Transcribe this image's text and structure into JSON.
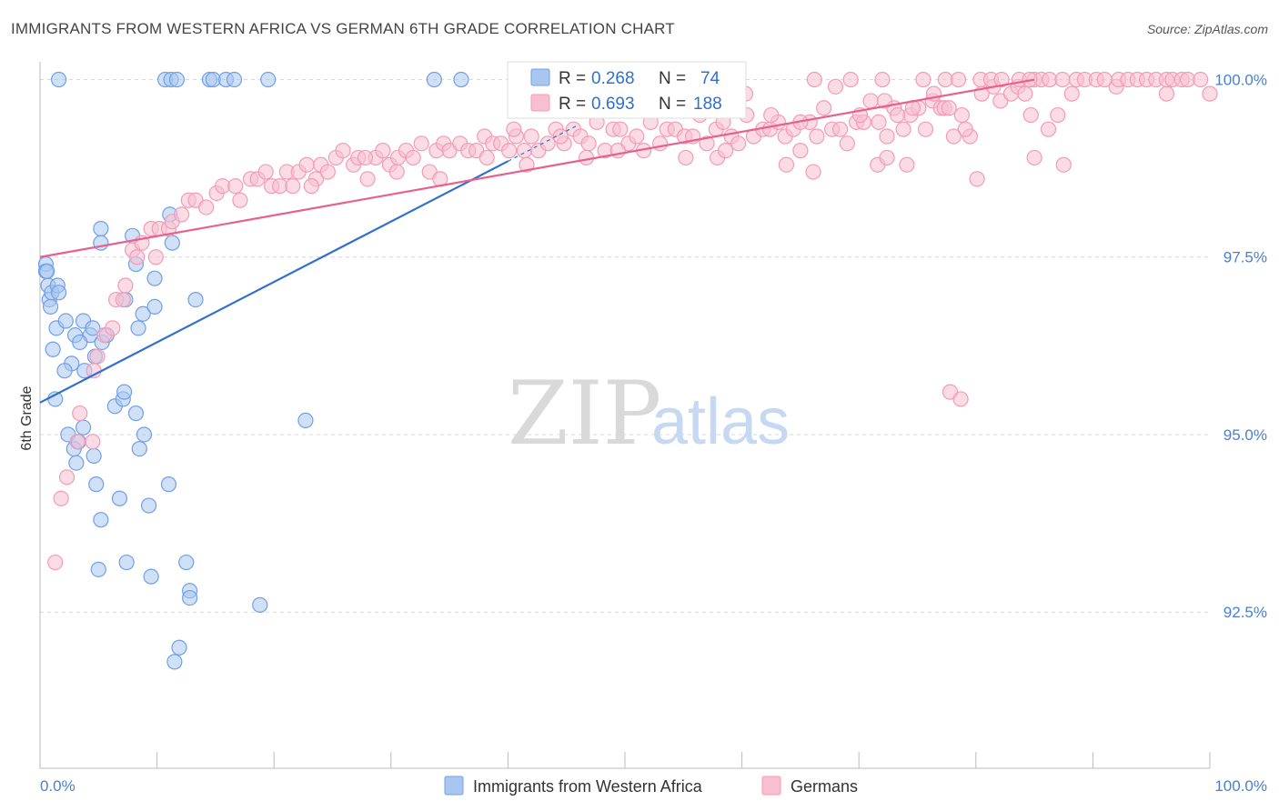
{
  "header": {
    "title": "IMMIGRANTS FROM WESTERN AFRICA VS GERMAN 6TH GRADE CORRELATION CHART",
    "source": "Source: ZipAtlas.com"
  },
  "watermark": {
    "zip": "ZIP",
    "atlas": "atlas"
  },
  "stats_box": {
    "rows": [
      {
        "r_label": "R = ",
        "r_value": "0.268",
        "n_label": "N = ",
        "n_value": "74",
        "color": "#6fa0e8"
      },
      {
        "r_label": "R = ",
        "r_value": "0.693",
        "n_label": "N = ",
        "n_value": "188",
        "color": "#f39bb7"
      }
    ]
  },
  "colors": {
    "blue_fill": "#a9c6f1",
    "blue_stroke": "#6fa0e8",
    "blue_line": "#2f6fcf",
    "pink_fill": "#f8bfd0",
    "pink_stroke": "#f39bb7",
    "pink_line": "#e7608e",
    "axis_text": "#4a7fd0",
    "grid": "#d8d8d8"
  },
  "chart_data": {
    "type": "scatter",
    "title": "IMMIGRANTS FROM WESTERN AFRICA VS GERMAN 6TH GRADE CORRELATION CHART",
    "xlabel": "",
    "ylabel": "6th Grade",
    "xlim": [
      0,
      100
    ],
    "ylim": [
      90.3,
      100.25
    ],
    "x_tick_labels": [
      "0.0%",
      "100.0%"
    ],
    "y_ticks": [
      92.5,
      95.0,
      97.5,
      100.0
    ],
    "y_tick_labels": [
      "92.5%",
      "95.0%",
      "97.5%",
      "100.0%"
    ],
    "legend": [
      "Immigrants from Western Africa",
      "Germans"
    ],
    "series": [
      {
        "name": "Immigrants from Western Africa",
        "trend": [
          [
            0.0,
            95.45
          ],
          [
            40.0,
            98.85
          ]
        ],
        "points": [
          [
            0.5,
            97.4
          ],
          [
            0.5,
            97.3
          ],
          [
            0.7,
            97.1
          ],
          [
            0.8,
            96.9
          ],
          [
            0.9,
            96.8
          ],
          [
            1.0,
            97.0
          ],
          [
            1.5,
            97.1
          ],
          [
            1.6,
            97.0
          ],
          [
            1.4,
            96.5
          ],
          [
            1.1,
            96.2
          ],
          [
            1.3,
            95.5
          ],
          [
            2.2,
            96.6
          ],
          [
            2.7,
            96.0
          ],
          [
            2.1,
            95.9
          ],
          [
            3.0,
            96.4
          ],
          [
            3.7,
            96.6
          ],
          [
            4.3,
            96.4
          ],
          [
            4.7,
            96.1
          ],
          [
            5.3,
            96.3
          ],
          [
            5.7,
            96.4
          ],
          [
            3.8,
            95.9
          ],
          [
            2.4,
            95.0
          ],
          [
            2.9,
            94.8
          ],
          [
            3.1,
            94.6
          ],
          [
            3.3,
            94.9
          ],
          [
            3.7,
            95.1
          ],
          [
            4.6,
            94.7
          ],
          [
            4.8,
            94.3
          ],
          [
            6.4,
            95.4
          ],
          [
            7.1,
            95.5
          ],
          [
            7.2,
            95.6
          ],
          [
            8.2,
            95.3
          ],
          [
            8.5,
            94.8
          ],
          [
            8.9,
            95.0
          ],
          [
            5.2,
            93.8
          ],
          [
            6.8,
            94.1
          ],
          [
            9.3,
            94.0
          ],
          [
            11.0,
            94.3
          ],
          [
            11.3,
            97.7
          ],
          [
            11.1,
            98.1
          ],
          [
            7.9,
            97.8
          ],
          [
            5.2,
            97.7
          ],
          [
            5.2,
            97.9
          ],
          [
            8.2,
            97.4
          ],
          [
            9.8,
            97.2
          ],
          [
            8.4,
            96.5
          ],
          [
            8.8,
            96.7
          ],
          [
            9.8,
            96.8
          ],
          [
            13.3,
            96.9
          ],
          [
            7.3,
            96.9
          ],
          [
            4.5,
            96.5
          ],
          [
            3.4,
            96.3
          ],
          [
            12.5,
            93.2
          ],
          [
            9.5,
            93.0
          ],
          [
            5.0,
            93.1
          ],
          [
            7.4,
            93.2
          ],
          [
            12.8,
            92.8
          ],
          [
            12.8,
            92.7
          ],
          [
            11.5,
            91.8
          ],
          [
            11.9,
            92.0
          ],
          [
            18.8,
            92.6
          ],
          [
            22.7,
            95.2
          ],
          [
            10.7,
            100.0
          ],
          [
            11.2,
            100.0
          ],
          [
            11.7,
            100.0
          ],
          [
            14.5,
            100.0
          ],
          [
            14.8,
            100.0
          ],
          [
            15.9,
            100.0
          ],
          [
            16.6,
            100.0
          ],
          [
            19.5,
            100.0
          ],
          [
            33.7,
            100.0
          ],
          [
            36.0,
            100.0
          ],
          [
            1.6,
            100.0
          ],
          [
            0.6,
            97.3
          ]
        ]
      },
      {
        "name": "Germans",
        "trend": [
          [
            0.0,
            97.5
          ],
          [
            85.0,
            100.0
          ]
        ],
        "points": [
          [
            1.3,
            93.2
          ],
          [
            1.8,
            94.1
          ],
          [
            2.3,
            94.4
          ],
          [
            3.2,
            94.9
          ],
          [
            3.4,
            95.3
          ],
          [
            4.5,
            94.9
          ],
          [
            4.6,
            95.9
          ],
          [
            4.9,
            96.1
          ],
          [
            5.5,
            96.4
          ],
          [
            6.2,
            96.5
          ],
          [
            6.5,
            96.9
          ],
          [
            7.1,
            96.9
          ],
          [
            7.3,
            97.1
          ],
          [
            7.9,
            97.6
          ],
          [
            8.3,
            97.5
          ],
          [
            8.7,
            97.7
          ],
          [
            9.5,
            97.9
          ],
          [
            9.9,
            97.5
          ],
          [
            10.2,
            97.9
          ],
          [
            11.0,
            97.9
          ],
          [
            11.3,
            98.0
          ],
          [
            12.1,
            98.1
          ],
          [
            12.7,
            98.3
          ],
          [
            13.3,
            98.3
          ],
          [
            14.2,
            98.2
          ],
          [
            15.1,
            98.4
          ],
          [
            15.6,
            98.5
          ],
          [
            16.7,
            98.5
          ],
          [
            17.1,
            98.3
          ],
          [
            18.0,
            98.6
          ],
          [
            18.6,
            98.6
          ],
          [
            19.3,
            98.7
          ],
          [
            19.8,
            98.5
          ],
          [
            20.5,
            98.5
          ],
          [
            21.1,
            98.7
          ],
          [
            21.6,
            98.5
          ],
          [
            22.1,
            98.7
          ],
          [
            22.8,
            98.8
          ],
          [
            23.6,
            98.6
          ],
          [
            24.0,
            98.8
          ],
          [
            24.6,
            98.7
          ],
          [
            25.3,
            98.9
          ],
          [
            25.9,
            99.0
          ],
          [
            26.8,
            98.8
          ],
          [
            27.2,
            98.9
          ],
          [
            28.0,
            98.6
          ],
          [
            28.7,
            98.9
          ],
          [
            29.3,
            99.0
          ],
          [
            29.9,
            98.8
          ],
          [
            30.6,
            98.9
          ],
          [
            31.3,
            99.0
          ],
          [
            31.9,
            98.9
          ],
          [
            32.6,
            99.1
          ],
          [
            33.3,
            98.7
          ],
          [
            33.9,
            99.0
          ],
          [
            34.5,
            99.1
          ],
          [
            35.0,
            99.0
          ],
          [
            35.9,
            99.1
          ],
          [
            36.6,
            99.0
          ],
          [
            37.3,
            99.0
          ],
          [
            38.0,
            99.2
          ],
          [
            38.7,
            99.1
          ],
          [
            39.4,
            99.1
          ],
          [
            40.1,
            99.0
          ],
          [
            40.7,
            99.2
          ],
          [
            41.4,
            99.0
          ],
          [
            42.0,
            99.2
          ],
          [
            42.6,
            99.0
          ],
          [
            43.4,
            99.1
          ],
          [
            44.1,
            99.3
          ],
          [
            44.8,
            99.1
          ],
          [
            45.6,
            99.3
          ],
          [
            46.2,
            99.2
          ],
          [
            46.9,
            99.1
          ],
          [
            47.6,
            99.4
          ],
          [
            48.3,
            99.0
          ],
          [
            49.0,
            99.3
          ],
          [
            49.6,
            99.3
          ],
          [
            50.3,
            99.1
          ],
          [
            51.0,
            99.2
          ],
          [
            51.6,
            99.0
          ],
          [
            52.2,
            99.4
          ],
          [
            53.0,
            99.1
          ],
          [
            53.6,
            99.3
          ],
          [
            54.3,
            99.3
          ],
          [
            55.1,
            99.2
          ],
          [
            55.8,
            99.2
          ],
          [
            56.4,
            99.5
          ],
          [
            57.0,
            99.1
          ],
          [
            57.8,
            99.3
          ],
          [
            58.4,
            99.4
          ],
          [
            59.1,
            99.2
          ],
          [
            59.7,
            99.1
          ],
          [
            60.4,
            99.5
          ],
          [
            61.0,
            99.2
          ],
          [
            61.8,
            99.3
          ],
          [
            62.4,
            99.3
          ],
          [
            63.1,
            99.4
          ],
          [
            63.7,
            99.2
          ],
          [
            64.4,
            99.3
          ],
          [
            65.0,
            99.0
          ],
          [
            65.8,
            99.4
          ],
          [
            66.4,
            99.2
          ],
          [
            67.0,
            99.6
          ],
          [
            67.7,
            99.3
          ],
          [
            68.4,
            99.3
          ],
          [
            69.0,
            99.1
          ],
          [
            69.8,
            99.4
          ],
          [
            70.4,
            99.4
          ],
          [
            71.0,
            99.7
          ],
          [
            71.7,
            99.4
          ],
          [
            72.4,
            99.2
          ],
          [
            73.0,
            99.6
          ],
          [
            73.8,
            99.3
          ],
          [
            74.4,
            99.5
          ],
          [
            75.1,
            99.6
          ],
          [
            75.7,
            99.3
          ],
          [
            76.3,
            99.7
          ],
          [
            77.0,
            99.6
          ],
          [
            78.8,
            99.5
          ],
          [
            79.5,
            99.2
          ],
          [
            80.5,
            99.8
          ],
          [
            81.5,
            99.9
          ],
          [
            82.1,
            99.7
          ],
          [
            83.0,
            99.8
          ],
          [
            83.6,
            99.9
          ],
          [
            84.2,
            99.8
          ],
          [
            85.0,
            100.0
          ],
          [
            85.6,
            100.0
          ],
          [
            23.2,
            98.5
          ],
          [
            27.8,
            98.9
          ],
          [
            30.5,
            98.7
          ],
          [
            34.2,
            98.6
          ],
          [
            38.2,
            98.9
          ],
          [
            41.6,
            98.8
          ],
          [
            46.7,
            98.9
          ],
          [
            49.4,
            99.0
          ],
          [
            55.2,
            98.9
          ],
          [
            57.9,
            98.9
          ],
          [
            58.6,
            99.0
          ],
          [
            63.8,
            98.8
          ],
          [
            66.1,
            98.7
          ],
          [
            71.6,
            98.8
          ],
          [
            72.4,
            98.9
          ],
          [
            74.1,
            98.8
          ],
          [
            79.1,
            99.3
          ],
          [
            88.2,
            99.8
          ],
          [
            92.0,
            99.9
          ],
          [
            96.3,
            99.8
          ],
          [
            100.0,
            99.8
          ],
          [
            66.2,
            100.0
          ],
          [
            69.3,
            100.0
          ],
          [
            72.0,
            100.0
          ],
          [
            75.5,
            100.0
          ],
          [
            77.4,
            100.0
          ],
          [
            78.5,
            100.0
          ],
          [
            80.4,
            100.0
          ],
          [
            81.3,
            100.0
          ],
          [
            82.2,
            100.0
          ],
          [
            83.7,
            100.0
          ],
          [
            84.6,
            100.0
          ],
          [
            86.3,
            100.0
          ],
          [
            87.4,
            100.0
          ],
          [
            88.6,
            100.0
          ],
          [
            89.3,
            100.0
          ],
          [
            90.3,
            100.0
          ],
          [
            91.0,
            100.0
          ],
          [
            92.2,
            100.0
          ],
          [
            93.0,
            100.0
          ],
          [
            93.8,
            100.0
          ],
          [
            94.6,
            100.0
          ],
          [
            95.4,
            100.0
          ],
          [
            96.3,
            100.0
          ],
          [
            96.8,
            100.0
          ],
          [
            97.6,
            100.0
          ],
          [
            98.1,
            100.0
          ],
          [
            99.2,
            100.0
          ],
          [
            76.4,
            99.8
          ],
          [
            77.3,
            99.6
          ],
          [
            77.7,
            99.6
          ],
          [
            78.1,
            99.2
          ],
          [
            80.1,
            98.6
          ],
          [
            85.0,
            98.9
          ],
          [
            87.0,
            99.5
          ],
          [
            77.8,
            95.6
          ],
          [
            78.7,
            95.5
          ],
          [
            87.5,
            98.8
          ],
          [
            84.7,
            99.5
          ],
          [
            86.2,
            99.3
          ],
          [
            74.6,
            99.6
          ],
          [
            72.2,
            99.7
          ],
          [
            73.3,
            99.5
          ],
          [
            70.1,
            99.5
          ],
          [
            68.0,
            99.9
          ],
          [
            65.0,
            99.4
          ],
          [
            62.5,
            99.5
          ],
          [
            60.3,
            99.8
          ],
          [
            58.6,
            99.6
          ],
          [
            44.5,
            99.2
          ],
          [
            40.5,
            99.3
          ]
        ]
      }
    ]
  }
}
